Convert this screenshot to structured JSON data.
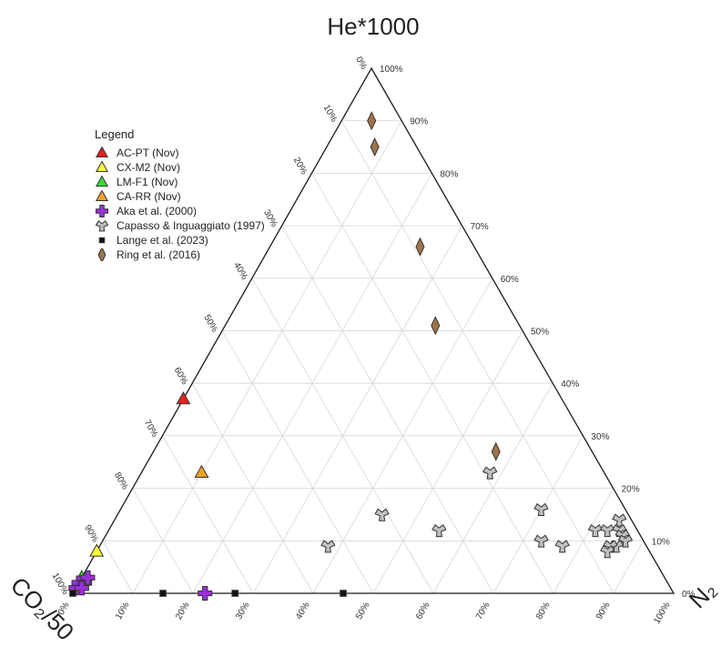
{
  "chart_data": {
    "type": "ternary",
    "apex_labels": {
      "top": "He*1000",
      "left": "CO₂/50",
      "right": "N₂"
    },
    "ticks": [
      "0%",
      "10%",
      "20%",
      "30%",
      "40%",
      "50%",
      "60%",
      "70%",
      "80%",
      "90%",
      "100%"
    ],
    "grid": true,
    "legend": {
      "title": "Legend",
      "placement": "top-left",
      "entries": [
        {
          "label": "AC-PT (Nov)",
          "marker": "triangle",
          "color": "#e8201c"
        },
        {
          "label": "CX-M2 (Nov)",
          "marker": "triangle",
          "color": "#ffff33"
        },
        {
          "label": "LM-F1 (Nov)",
          "marker": "triangle",
          "color": "#33dd33"
        },
        {
          "label": "CA-RR (Nov)",
          "marker": "triangle",
          "color": "#f5a12a"
        },
        {
          "label": "Aka et al. (2000)",
          "marker": "cross",
          "color": "#9b30d9"
        },
        {
          "label": "Capasso & Inguaggiato (1997)",
          "marker": "tripod",
          "color": "#bfbfbf"
        },
        {
          "label": "Lange et al. (2023)",
          "marker": "square",
          "color": "#111111"
        },
        {
          "label": "Ring et al. (2016)",
          "marker": "diamond",
          "color": "#a0744a"
        }
      ]
    },
    "series": [
      {
        "name": "AC-PT (Nov)",
        "points": [
          {
            "he": 37,
            "n2": 0,
            "co2": 63
          }
        ]
      },
      {
        "name": "CX-M2 (Nov)",
        "points": [
          {
            "he": 8,
            "n2": 0,
            "co2": 92
          }
        ]
      },
      {
        "name": "LM-F1 (Nov)",
        "points": [
          {
            "he": 3,
            "n2": 0,
            "co2": 97
          }
        ]
      },
      {
        "name": "CA-RR (Nov)",
        "points": [
          {
            "he": 23,
            "n2": 10,
            "co2": 67
          }
        ]
      },
      {
        "name": "Aka et al. (2000)",
        "points": [
          {
            "he": 0,
            "n2": 22,
            "co2": 78
          },
          {
            "he": 1,
            "n2": 0,
            "co2": 99
          },
          {
            "he": 2,
            "n2": 0,
            "co2": 98
          },
          {
            "he": 2,
            "n2": 1,
            "co2": 97
          },
          {
            "he": 1,
            "n2": 1,
            "co2": 98
          },
          {
            "he": 3,
            "n2": 1,
            "co2": 96
          }
        ]
      },
      {
        "name": "Capasso & Inguaggiato (1997)",
        "points": [
          {
            "he": 9,
            "n2": 38,
            "co2": 53
          },
          {
            "he": 15,
            "n2": 44,
            "co2": 41
          },
          {
            "he": 12,
            "n2": 55,
            "co2": 33
          },
          {
            "he": 23,
            "n2": 58,
            "co2": 19
          },
          {
            "he": 16,
            "n2": 70,
            "co2": 14
          },
          {
            "he": 10,
            "n2": 73,
            "co2": 17
          },
          {
            "he": 9,
            "n2": 77,
            "co2": 14
          },
          {
            "he": 12,
            "n2": 81,
            "co2": 7
          },
          {
            "he": 12,
            "n2": 83,
            "co2": 5
          },
          {
            "he": 14,
            "n2": 84,
            "co2": 2
          },
          {
            "he": 12,
            "n2": 85,
            "co2": 3
          },
          {
            "he": 11,
            "n2": 86,
            "co2": 3
          },
          {
            "he": 10,
            "n2": 87,
            "co2": 3
          },
          {
            "he": 9,
            "n2": 86,
            "co2": 5
          },
          {
            "he": 9,
            "n2": 85,
            "co2": 6
          },
          {
            "he": 8,
            "n2": 85,
            "co2": 7
          }
        ]
      },
      {
        "name": "Lange et al. (2023)",
        "points": [
          {
            "he": 0,
            "n2": 0,
            "co2": 100
          },
          {
            "he": 0,
            "n2": 15,
            "co2": 85
          },
          {
            "he": 0,
            "n2": 27,
            "co2": 73
          },
          {
            "he": 0,
            "n2": 45,
            "co2": 55
          }
        ]
      },
      {
        "name": "Ring et al. (2016)",
        "points": [
          {
            "he": 90,
            "n2": 5,
            "co2": 5
          },
          {
            "he": 85,
            "n2": 8,
            "co2": 7
          },
          {
            "he": 66,
            "n2": 25,
            "co2": 9
          },
          {
            "he": 51,
            "n2": 35,
            "co2": 14
          },
          {
            "he": 27,
            "n2": 57,
            "co2": 16
          }
        ]
      }
    ]
  }
}
